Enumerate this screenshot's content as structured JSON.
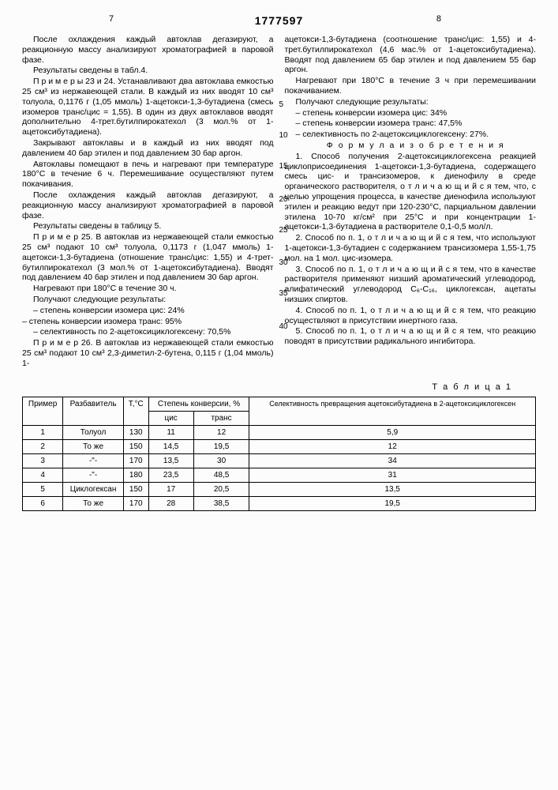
{
  "page_left": "7",
  "page_right": "8",
  "patent_number": "1777597",
  "col_left": {
    "p1": "После охлаждения каждый автоклав дегазируют, а реакционную массу анализируют хроматографией в паровой фазе.",
    "p2": "Результаты сведены в табл.4.",
    "p3": "П р и м е р ы 23 и 24. Устанавливают два автоклава емкостью 25 см³ из нержавеющей стали. В каждый из них вводят 10 см³ толуола, 0,1176 г (1,05 ммоль) 1-ацетокси-1,3-бутадиена (смесь изомеров транс/цис = 1,55). В один из двух автоклавов вводят дополнительно 4-трет.бутилпирокатехол (3 мол.% от 1-ацетоксибутадиена).",
    "p4": "Закрывают автоклавы и в каждый из них вводят под давлением 40 бар этилен и под давлением 30 бар аргон.",
    "p5": "Автоклавы помещают в печь и нагревают при температуре 180°С в течение 6 ч. Перемешивание осуществляют путем покачивания.",
    "p6": "После охлаждения каждый автоклав дегазируют, а реакционную массу анализируют хроматографией в паровой фазе.",
    "p7": "Результаты сведены в таблицу 5.",
    "p8": "П р и м е р 25. В автоклав из нержавеющей стали емкостью 25 см³ подают 10 см³ толуола, 0,1173 г (1,047 ммоль) 1-ацетокси-1,3-бутадиена (отношение транс/цис: 1,55) и 4-трет-бутилпирокатехол (3 мол.% от 1-ацетоксибутадиена). Вводят под давлением 40 бар этилен и под давлением 30 бар аргон.",
    "p9": "Нагревают при 180°С в течение 30 ч.",
    "p10": "Получают следующие результаты:",
    "p11": "– степень конверсии изомера цис: 24%",
    "p12": "– степень конверсии изомера транс: 95%",
    "p13": "– селективность по 2-ацетоксициклогексену: 70,5%",
    "p14": "П р и м е р 26. В автоклав из нержавеющей стали емкостью 25 см³ подают 10 см³ 2,3-диметил-2-бутена, 0,115 г (1,04 ммоль) 1-"
  },
  "col_right": {
    "p1": "ацетокси-1,3-бутадиена (соотношение транс/цис: 1,55) и 4-трет.бутилпирокатехол (4,6 мас.% от 1-ацетоксибутадиена). Вводят под давлением 65 бар этилен и под давлением 55 бар аргон.",
    "p2": "Нагревают при 180°С в течение 3 ч при перемешивании покачиванием.",
    "p3": "Получают следующие результаты:",
    "p4": "– степень конверсии изомера цис: 34%",
    "p5": "– степень конверсии изомера транс: 47,5%",
    "p6": "– селективность по 2-ацетоксициклогексену: 27%.",
    "formula_title": "Ф о р м у л а  и з о б р е т е н и я",
    "c1": "1. Способ получения 2-ацетоксициклогексена реакцией циклоприсоединения 1-ацетокси-1,3-бутадиена, содержащего смесь цис- и трансизомеров, к диенофилу в среде органического растворителя, о т л и ч а ю щ и й с я  тем, что, с целью упрощения процесса, в качестве диенофила используют этилен и реакцию ведут при 120-230°С, парциальном давлении этилена 10-70 кг/см² при 25°С и при концентрации 1-ацетокси-1,3-бутадиена в растворителе 0,1-0,5 мол/л.",
    "c2": "2. Способ по п. 1, о т л и ч а ю щ и й с я тем, что используют 1-ацетокси-1,3-бутадиен с содержанием трансизомера 1,55-1,75 мол. на 1 мол. цис-изомера.",
    "c3": "3. Способ по п. 1, о т л и ч а ю щ и й с я тем, что в качестве растворителя применяют низший ароматический углеводород, алифатический углеводород C₆-C₁₆, циклогексан, ацетаты низших спиртов.",
    "c4": "4. Способ по п. 1, о т л и ч а ю щ и й с я тем, что реакцию осуществляют в присутствии инертного газа.",
    "c5": "5. Способ по п. 1, о т л и ч а ю щ и й с я тем, что реакцию поводят в присутствии радикального ингибитора."
  },
  "line_nums": [
    "5",
    "10",
    "15",
    "20",
    "25",
    "30",
    "35",
    "40"
  ],
  "line_num_tops": [
    83,
    122,
    161,
    203,
    242,
    283,
    322,
    364
  ],
  "table_label": "Т а б л и ц а 1",
  "table": {
    "headers": {
      "col1": "Пример",
      "col2": "Разбавитель",
      "col3": "Т,°С",
      "col4": "Степень конверсии, %",
      "col4a": "цис",
      "col4b": "транс",
      "col5": "Селективность превращения ацетоксибутадиена в 2-ацетоксициклогексен"
    },
    "rows": [
      [
        "1",
        "Толуол",
        "130",
        "11",
        "12",
        "5,9"
      ],
      [
        "2",
        "То же",
        "150",
        "14,5",
        "19,5",
        "12"
      ],
      [
        "3",
        "-\"-",
        "170",
        "13,5",
        "30",
        "34"
      ],
      [
        "4",
        "-\"-",
        "180",
        "23,5",
        "48,5",
        "31"
      ],
      [
        "5",
        "Циклогексан",
        "150",
        "17",
        "20,5",
        "13,5"
      ],
      [
        "6",
        "То же",
        "170",
        "28",
        "38,5",
        "19,5"
      ]
    ]
  },
  "colors": {
    "text": "#000000",
    "bg": "#fcfcfc",
    "border": "#000000"
  }
}
